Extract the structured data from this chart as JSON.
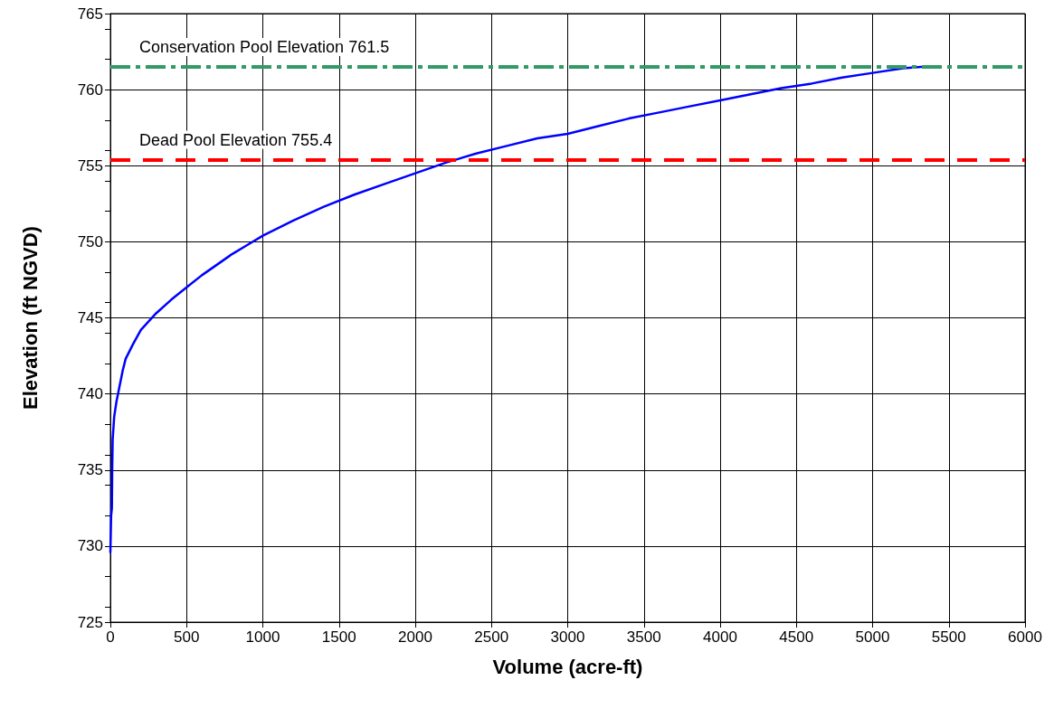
{
  "chart_data": {
    "type": "line",
    "xlabel": "Volume (acre-ft)",
    "ylabel": "Elevation (ft NGVD)",
    "x": [
      0,
      5,
      10,
      12,
      15,
      25,
      40,
      60,
      80,
      100,
      150,
      200,
      300,
      400,
      500,
      600,
      700,
      800,
      900,
      1000,
      1200,
      1400,
      1600,
      1800,
      2000,
      2200,
      2400,
      2600,
      2800,
      3000,
      3200,
      3400,
      3600,
      3800,
      4000,
      4200,
      4400,
      4600,
      4800,
      5000,
      5200,
      5320
    ],
    "series": [
      {
        "color": "#0000ff",
        "values": [
          729.6,
          732,
          732.5,
          735,
          737,
          738.5,
          739.5,
          740.5,
          741.5,
          742.3,
          743.3,
          744.2,
          745.3,
          746.2,
          747,
          747.8,
          748.5,
          749.2,
          749.8,
          750.4,
          751.4,
          752.3,
          753.1,
          753.8,
          754.5,
          755.2,
          755.8,
          756.3,
          756.8,
          757.1,
          757.6,
          758.1,
          758.5,
          758.9,
          759.3,
          759.7,
          760.1,
          760.4,
          760.8,
          761.1,
          761.4,
          761.5
        ]
      }
    ],
    "xlim": [
      0,
      6000
    ],
    "xticks": [
      0,
      500,
      1000,
      1500,
      2000,
      2500,
      3000,
      3500,
      4000,
      4500,
      5000,
      5500,
      6000
    ],
    "ylim": [
      725,
      765
    ],
    "yticks": [
      725,
      730,
      735,
      740,
      745,
      750,
      755,
      760,
      765
    ],
    "ref_lines": [
      {
        "axis": "y",
        "value": 761.5,
        "label": "Conservation Pool Elevation 761.5",
        "color": "#339966",
        "line_style": "dashdot"
      },
      {
        "axis": "y",
        "value": 755.4,
        "label": "Dead Pool Elevation 755.4",
        "color": "#ff0000",
        "line_style": "dashed"
      }
    ],
    "grid": true,
    "marker": "none",
    "line_style": "solid"
  }
}
